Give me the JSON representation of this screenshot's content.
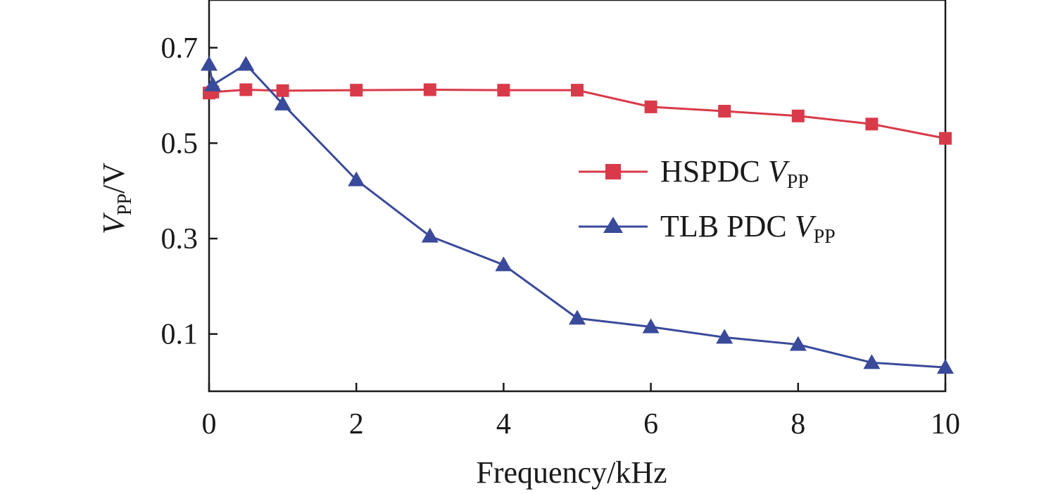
{
  "chart_data": {
    "type": "line",
    "xlabel": "Frequency/kHz",
    "ylabel": {
      "main": "V",
      "sub": "PP",
      "rest": "/V"
    },
    "xlim": [
      0,
      10
    ],
    "ylim": [
      -0.02,
      0.8
    ],
    "xticks": [
      0,
      2,
      4,
      6,
      8,
      10
    ],
    "yticks": [
      0.1,
      0.3,
      0.5,
      0.7
    ],
    "xtick_labels": [
      "0",
      "2",
      "4",
      "6",
      "8",
      "10"
    ],
    "ytick_labels": [
      "0.1",
      "0.3",
      "0.5",
      "0.7"
    ],
    "grid": false,
    "legend_position": "right-middle",
    "series": [
      {
        "name": "HSPDC V",
        "name_sub": "PP",
        "color": "#d93a4a",
        "marker": "square",
        "x": [
          0,
          0.05,
          0.5,
          1,
          2,
          3,
          4,
          5,
          6,
          7,
          8,
          9,
          10
        ],
        "values": [
          0.605,
          0.607,
          0.612,
          0.61,
          0.611,
          0.612,
          0.611,
          0.611,
          0.576,
          0.567,
          0.557,
          0.54,
          0.51
        ]
      },
      {
        "name": "TLB PDC V",
        "name_sub": "PP",
        "color": "#3a4a9a",
        "marker": "triangle",
        "x": [
          0,
          0.05,
          0.5,
          1,
          2,
          3,
          4,
          5,
          6,
          7,
          8,
          9,
          10
        ],
        "values": [
          0.665,
          0.622,
          0.665,
          0.582,
          0.423,
          0.305,
          0.245,
          0.133,
          0.115,
          0.093,
          0.078,
          0.04,
          0.03
        ]
      }
    ]
  }
}
